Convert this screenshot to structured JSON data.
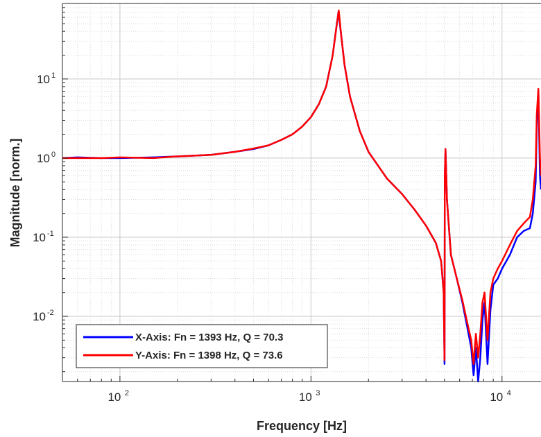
{
  "chart_data": {
    "type": "line",
    "title": "",
    "xlabel": "Frequency [Hz]",
    "ylabel": "Magnitude [norm.]",
    "x_scale": "log",
    "y_scale": "log",
    "xlim": [
      50,
      16000
    ],
    "ylim": [
      0.0015,
      90
    ],
    "grid": "major and minor, dotted",
    "legend_position": "bottom-left",
    "x_ticks": [
      {
        "value": 100,
        "base": "10",
        "exp": "2"
      },
      {
        "value": 1000,
        "base": "10",
        "exp": "3"
      },
      {
        "value": 10000,
        "base": "10",
        "exp": "4"
      }
    ],
    "y_ticks": [
      {
        "value": 0.01,
        "base": "10",
        "exp": "-2"
      },
      {
        "value": 0.1,
        "base": "10",
        "exp": "-1"
      },
      {
        "value": 1,
        "base": "10",
        "exp": "0"
      },
      {
        "value": 10,
        "base": "10",
        "exp": "1"
      }
    ],
    "series": [
      {
        "name": "X-Axis: Fn = 1393 Hz, Q = 70.3",
        "color": "#0000ff",
        "x": [
          50,
          60,
          80,
          100,
          150,
          200,
          300,
          400,
          500,
          600,
          700,
          800,
          900,
          1000,
          1100,
          1200,
          1300,
          1350,
          1393,
          1440,
          1500,
          1600,
          1800,
          2000,
          2500,
          3000,
          3500,
          4000,
          4500,
          4800,
          4950,
          5000,
          5020,
          5060,
          5150,
          5400,
          5800,
          6200,
          6600,
          6900,
          7100,
          7300,
          7500,
          7700,
          7900,
          8100,
          8400,
          8700,
          9000,
          9500,
          10000,
          11000,
          12000,
          13000,
          14000,
          14500,
          15000,
          15200,
          15500,
          15800,
          16000
        ],
        "y": [
          1.0,
          1.02,
          1.0,
          1.0,
          1.02,
          1.05,
          1.1,
          1.2,
          1.3,
          1.45,
          1.7,
          2.0,
          2.5,
          3.3,
          4.8,
          8.0,
          20.0,
          40.0,
          70.3,
          35.0,
          15.0,
          6.0,
          2.2,
          1.2,
          0.55,
          0.35,
          0.22,
          0.14,
          0.085,
          0.05,
          0.02,
          0.0025,
          0.55,
          1.3,
          0.3,
          0.06,
          0.03,
          0.015,
          0.007,
          0.004,
          0.0018,
          0.004,
          0.0015,
          0.003,
          0.009,
          0.015,
          0.0025,
          0.012,
          0.025,
          0.03,
          0.04,
          0.06,
          0.1,
          0.12,
          0.13,
          0.2,
          0.5,
          2.5,
          7.0,
          0.6,
          0.4
        ]
      },
      {
        "name": "Y-Axis: Fn = 1398 Hz, Q = 73.6",
        "color": "#ff0000",
        "x": [
          50,
          60,
          80,
          100,
          150,
          200,
          300,
          400,
          500,
          600,
          700,
          800,
          900,
          1000,
          1100,
          1200,
          1300,
          1350,
          1398,
          1440,
          1500,
          1600,
          1800,
          2000,
          2500,
          3000,
          3500,
          4000,
          4500,
          4800,
          4950,
          5000,
          5020,
          5060,
          5150,
          5400,
          5800,
          6200,
          6600,
          6900,
          7100,
          7300,
          7500,
          7700,
          7900,
          8100,
          8400,
          8700,
          9000,
          9500,
          10000,
          11000,
          12000,
          13000,
          14000,
          14500,
          15000,
          15200,
          15500,
          15800,
          16000
        ],
        "y": [
          1.0,
          1.0,
          1.0,
          1.02,
          1.0,
          1.05,
          1.1,
          1.2,
          1.32,
          1.45,
          1.7,
          2.0,
          2.5,
          3.3,
          4.8,
          8.0,
          20.0,
          40.0,
          73.6,
          35.0,
          15.0,
          6.0,
          2.2,
          1.2,
          0.55,
          0.35,
          0.22,
          0.14,
          0.085,
          0.05,
          0.02,
          0.0028,
          0.6,
          1.3,
          0.3,
          0.06,
          0.03,
          0.016,
          0.008,
          0.005,
          0.0025,
          0.006,
          0.003,
          0.006,
          0.015,
          0.02,
          0.005,
          0.02,
          0.03,
          0.04,
          0.05,
          0.08,
          0.12,
          0.15,
          0.18,
          0.3,
          0.8,
          3.5,
          7.5,
          1.0,
          0.6
        ]
      }
    ]
  }
}
